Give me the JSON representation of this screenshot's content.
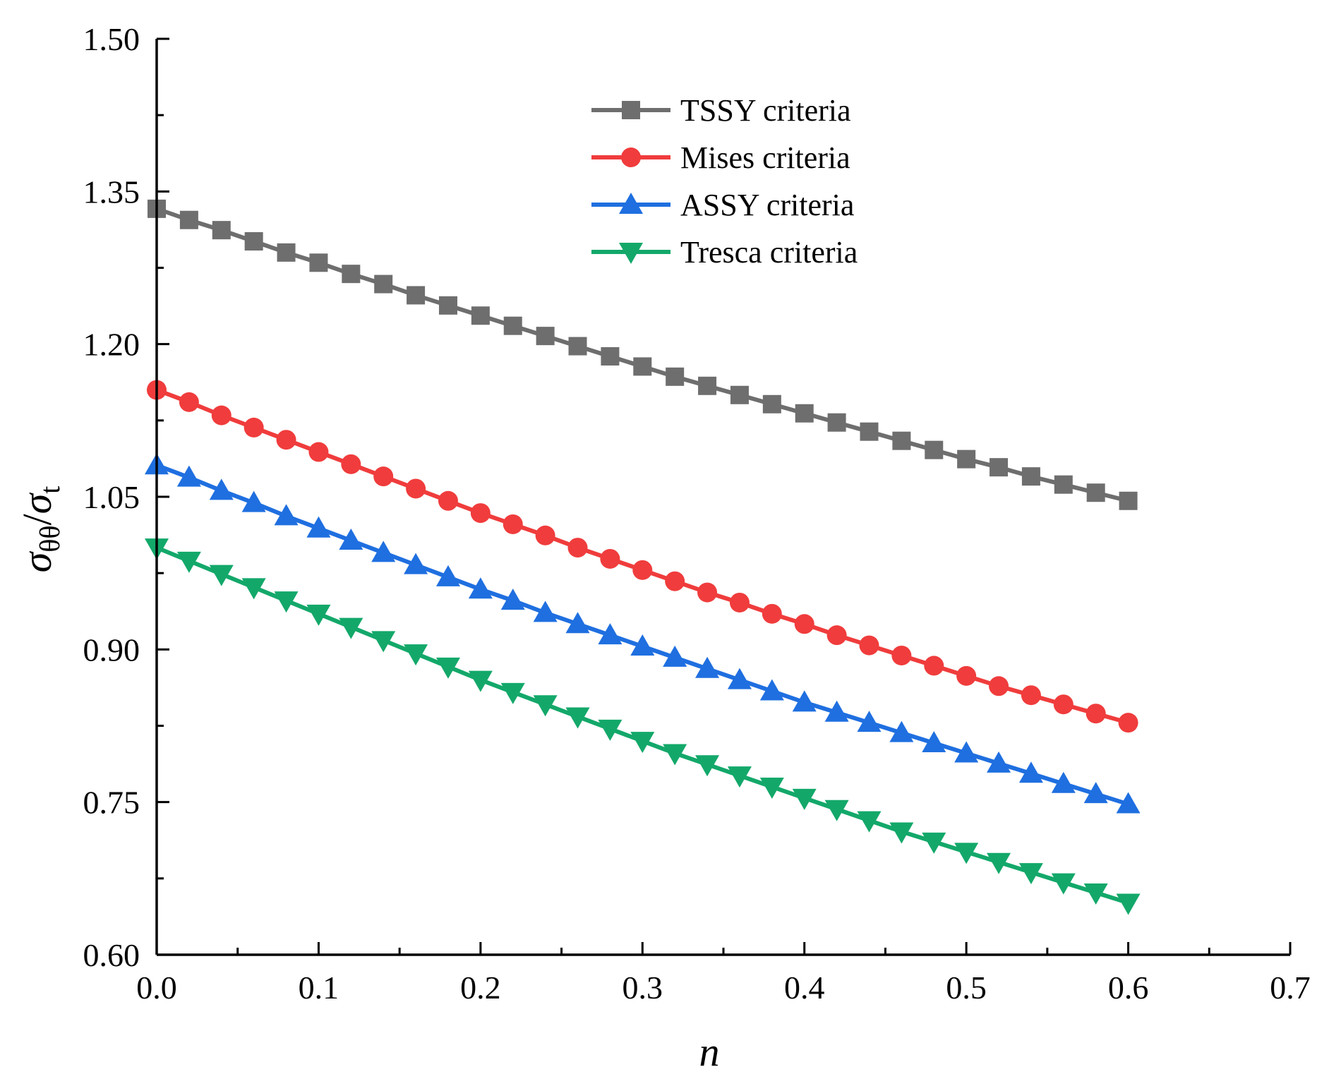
{
  "chart_data": {
    "type": "line",
    "title": "",
    "xlabel": "n",
    "ylabel": {
      "sym1": "σ",
      "sub1": "θθ",
      "slash": "/",
      "sym2": "σ",
      "sub2": "t"
    },
    "xlim": [
      0.0,
      0.7
    ],
    "ylim": [
      0.6,
      1.5
    ],
    "x_ticks": [
      "0.0",
      "0.1",
      "0.2",
      "0.3",
      "0.4",
      "0.5",
      "0.6",
      "0.7"
    ],
    "y_ticks": [
      "0.60",
      "0.75",
      "0.90",
      "1.05",
      "1.20",
      "1.35",
      "1.50"
    ],
    "x": [
      0.0,
      0.02,
      0.04,
      0.06,
      0.08,
      0.1,
      0.12,
      0.14,
      0.16,
      0.18,
      0.2,
      0.22,
      0.24,
      0.26,
      0.28,
      0.3,
      0.32,
      0.34,
      0.36,
      0.38,
      0.4,
      0.42,
      0.44,
      0.46,
      0.48,
      0.5,
      0.52,
      0.54,
      0.56,
      0.58,
      0.6
    ],
    "series": [
      {
        "name": "TSSY criteria",
        "color": "#6e6e6e",
        "marker": "square",
        "values": [
          1.333,
          1.322,
          1.312,
          1.301,
          1.29,
          1.28,
          1.269,
          1.259,
          1.248,
          1.238,
          1.228,
          1.218,
          1.208,
          1.198,
          1.188,
          1.178,
          1.168,
          1.159,
          1.15,
          1.141,
          1.132,
          1.123,
          1.114,
          1.105,
          1.096,
          1.087,
          1.079,
          1.07,
          1.062,
          1.054,
          1.046
        ]
      },
      {
        "name": "Mises criteria",
        "color": "#f03c3c",
        "marker": "circle",
        "values": [
          1.155,
          1.143,
          1.13,
          1.118,
          1.106,
          1.094,
          1.082,
          1.07,
          1.058,
          1.046,
          1.034,
          1.023,
          1.012,
          1.0,
          0.989,
          0.978,
          0.967,
          0.956,
          0.946,
          0.935,
          0.925,
          0.914,
          0.904,
          0.894,
          0.884,
          0.874,
          0.864,
          0.855,
          0.846,
          0.837,
          0.828
        ]
      },
      {
        "name": "ASSY criteria",
        "color": "#1f6fe0",
        "marker": "triangle-up",
        "values": [
          1.081,
          1.069,
          1.056,
          1.044,
          1.031,
          1.019,
          1.007,
          0.995,
          0.983,
          0.971,
          0.959,
          0.948,
          0.936,
          0.925,
          0.914,
          0.903,
          0.892,
          0.881,
          0.87,
          0.859,
          0.848,
          0.838,
          0.828,
          0.818,
          0.808,
          0.798,
          0.788,
          0.778,
          0.768,
          0.758,
          0.748
        ]
      },
      {
        "name": "Tresca criteria",
        "color": "#13a86a",
        "marker": "triangle-down",
        "values": [
          1.0,
          0.987,
          0.974,
          0.961,
          0.948,
          0.935,
          0.922,
          0.909,
          0.896,
          0.883,
          0.87,
          0.858,
          0.846,
          0.834,
          0.822,
          0.81,
          0.798,
          0.787,
          0.776,
          0.765,
          0.754,
          0.743,
          0.732,
          0.721,
          0.711,
          0.701,
          0.691,
          0.681,
          0.671,
          0.661,
          0.651
        ]
      }
    ],
    "legend_position": "top-center",
    "grid": false
  }
}
